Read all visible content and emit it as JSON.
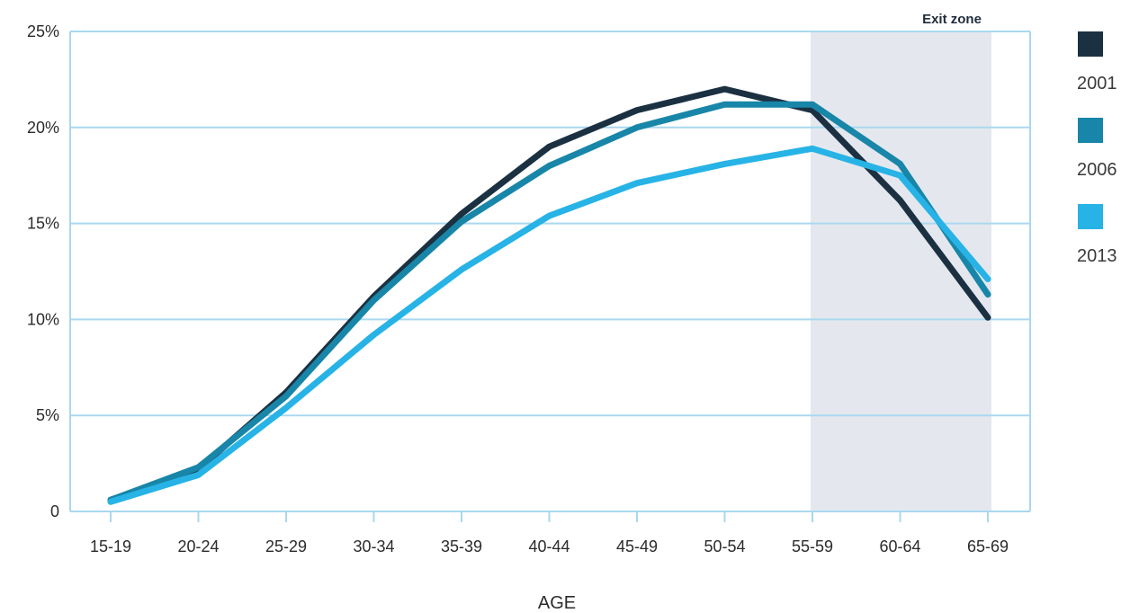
{
  "chart_data": {
    "type": "line",
    "categories": [
      "15-19",
      "20-24",
      "25-29",
      "30-34",
      "35-39",
      "40-44",
      "45-49",
      "50-54",
      "55-59",
      "60-64",
      "65-69"
    ],
    "series": [
      {
        "name": "2001",
        "color": "#1b3142",
        "values": [
          0.6,
          2.2,
          6.2,
          11.2,
          15.5,
          19.0,
          20.9,
          22.0,
          20.9,
          16.2,
          10.1
        ]
      },
      {
        "name": "2006",
        "color": "#1886a8",
        "values": [
          0.6,
          2.3,
          6.0,
          11.0,
          15.1,
          18.0,
          20.0,
          21.2,
          21.2,
          18.1,
          11.3
        ]
      },
      {
        "name": "2013",
        "color": "#27b3e6",
        "values": [
          0.5,
          1.9,
          5.4,
          9.2,
          12.6,
          15.4,
          17.1,
          18.1,
          18.9,
          17.5,
          12.1
        ]
      }
    ],
    "y_ticks": [
      "0",
      "5%",
      "10%",
      "15%",
      "20%",
      "25%"
    ],
    "y_tick_values": [
      0,
      5,
      10,
      15,
      20,
      25
    ],
    "ylim": [
      0,
      25
    ],
    "xlabel": "AGE",
    "ylabel": "",
    "grid": true,
    "legend_position": "right",
    "shaded_zone": {
      "label": "Exit zone",
      "from": "55-59",
      "to": "65-69",
      "color": "#e4e8ee"
    }
  }
}
